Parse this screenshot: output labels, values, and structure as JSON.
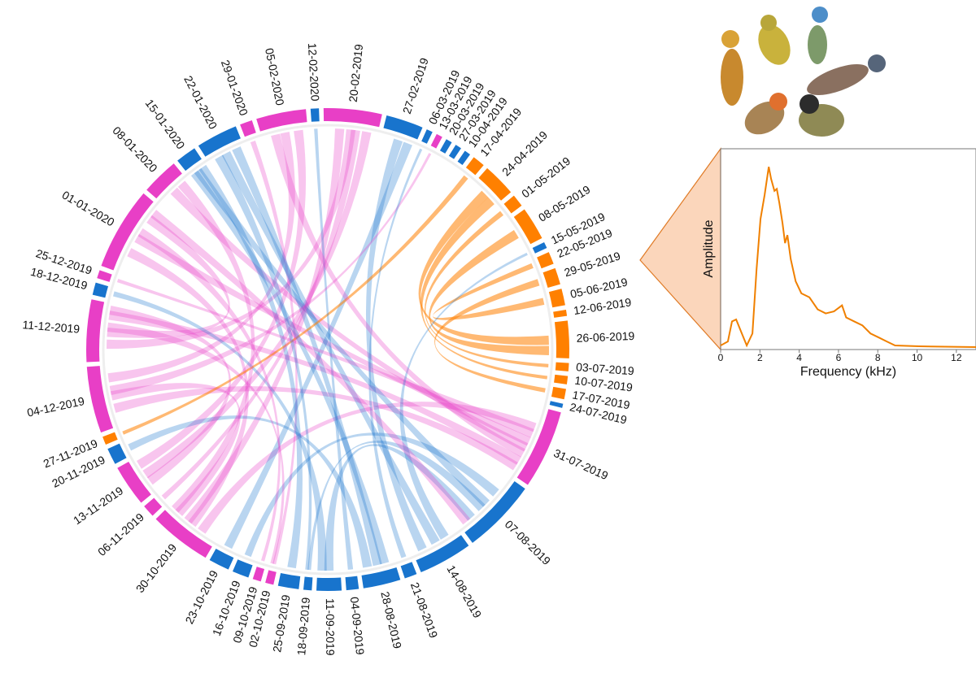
{
  "chart_data": [
    {
      "type": "chord",
      "segments": [
        {
          "label": "20-02-2019",
          "value": 14,
          "color": "#e83fc6"
        },
        {
          "label": "27-02-2019",
          "value": 9,
          "color": "#1874cd"
        },
        {
          "label": "06-03-2019",
          "value": 1.5,
          "color": "#1874cd"
        },
        {
          "label": "13-03-2019",
          "value": 1.5,
          "color": "#e83fc6"
        },
        {
          "label": "20-03-2019",
          "value": 1.5,
          "color": "#1874cd"
        },
        {
          "label": "27-03-2019",
          "value": 1.5,
          "color": "#1874cd"
        },
        {
          "label": "10-04-2019",
          "value": 1.5,
          "color": "#1874cd"
        },
        {
          "label": "17-04-2019",
          "value": 3,
          "color": "#ff8000"
        },
        {
          "label": "24-04-2019",
          "value": 8,
          "color": "#ff8000"
        },
        {
          "label": "01-05-2019",
          "value": 3,
          "color": "#ff8000"
        },
        {
          "label": "08-05-2019",
          "value": 8,
          "color": "#ff8000"
        },
        {
          "label": "15-05-2019",
          "value": 1.5,
          "color": "#1874cd"
        },
        {
          "label": "22-05-2019",
          "value": 3,
          "color": "#ff8000"
        },
        {
          "label": "29-05-2019",
          "value": 4,
          "color": "#ff8000"
        },
        {
          "label": "05-06-2019",
          "value": 4,
          "color": "#ff8000"
        },
        {
          "label": "12-06-2019",
          "value": 1.5,
          "color": "#ff8000"
        },
        {
          "label": "26-06-2019",
          "value": 9,
          "color": "#ff8000"
        },
        {
          "label": "03-07-2019",
          "value": 2,
          "color": "#ff8000"
        },
        {
          "label": "10-07-2019",
          "value": 2,
          "color": "#ff8000"
        },
        {
          "label": "17-07-2019",
          "value": 2.5,
          "color": "#ff8000"
        },
        {
          "label": "24-07-2019",
          "value": 1,
          "color": "#1874cd"
        },
        {
          "label": "31-07-2019",
          "value": 19,
          "color": "#e83fc6"
        },
        {
          "label": "07-08-2019",
          "value": 18,
          "color": "#1874cd"
        },
        {
          "label": "14-08-2019",
          "value": 13,
          "color": "#1874cd"
        },
        {
          "label": "21-08-2019",
          "value": 3,
          "color": "#1874cd"
        },
        {
          "label": "28-08-2019",
          "value": 9,
          "color": "#1874cd"
        },
        {
          "label": "04-09-2019",
          "value": 3,
          "color": "#1874cd"
        },
        {
          "label": "11-09-2019",
          "value": 6,
          "color": "#1874cd"
        },
        {
          "label": "18-09-2019",
          "value": 2,
          "color": "#1874cd"
        },
        {
          "label": "25-09-2019",
          "value": 5,
          "color": "#1874cd"
        },
        {
          "label": "02-10-2019",
          "value": 2,
          "color": "#e83fc6"
        },
        {
          "label": "09-10-2019",
          "value": 2,
          "color": "#e83fc6"
        },
        {
          "label": "16-10-2019",
          "value": 4,
          "color": "#1874cd"
        },
        {
          "label": "23-10-2019",
          "value": 5,
          "color": "#1874cd"
        },
        {
          "label": "30-10-2019",
          "value": 15,
          "color": "#e83fc6"
        },
        {
          "label": "06-11-2019",
          "value": 3,
          "color": "#e83fc6"
        },
        {
          "label": "13-11-2019",
          "value": 10,
          "color": "#e83fc6"
        },
        {
          "label": "20-11-2019",
          "value": 4,
          "color": "#1874cd"
        },
        {
          "label": "27-11-2019",
          "value": 2,
          "color": "#ff8000"
        },
        {
          "label": "04-12-2019",
          "value": 16,
          "color": "#e83fc6"
        },
        {
          "label": "11-12-2019",
          "value": 15,
          "color": "#e83fc6"
        },
        {
          "label": "18-12-2019",
          "value": 3,
          "color": "#1874cd"
        },
        {
          "label": "25-12-2019",
          "value": 2,
          "color": "#e83fc6"
        },
        {
          "label": "01-01-2020",
          "value": 20,
          "color": "#e83fc6"
        },
        {
          "label": "08-01-2020",
          "value": 9,
          "color": "#e83fc6"
        },
        {
          "label": "15-01-2020",
          "value": 5,
          "color": "#1874cd"
        },
        {
          "label": "22-01-2020",
          "value": 10,
          "color": "#1874cd"
        },
        {
          "label": "29-01-2020",
          "value": 3,
          "color": "#e83fc6"
        },
        {
          "label": "05-02-2020",
          "value": 12,
          "color": "#e83fc6"
        },
        {
          "label": "12-02-2020",
          "value": 2,
          "color": "#1874cd"
        }
      ],
      "links": [
        [
          43,
          21
        ],
        [
          43,
          40
        ],
        [
          43,
          34
        ],
        [
          40,
          21
        ],
        [
          40,
          0
        ],
        [
          39,
          34
        ],
        [
          39,
          48
        ],
        [
          36,
          0
        ],
        [
          34,
          21
        ],
        [
          48,
          36
        ],
        [
          44,
          21
        ],
        [
          0,
          34
        ],
        [
          21,
          39
        ],
        [
          47,
          30
        ],
        [
          22,
          45
        ],
        [
          22,
          27
        ],
        [
          23,
          46
        ],
        [
          23,
          1
        ],
        [
          25,
          46
        ],
        [
          32,
          22
        ],
        [
          33,
          1
        ],
        [
          29,
          45
        ],
        [
          27,
          41
        ],
        [
          37,
          25
        ],
        [
          16,
          8
        ],
        [
          16,
          10
        ],
        [
          19,
          13
        ],
        [
          17,
          9
        ],
        [
          14,
          12
        ],
        [
          18,
          8
        ],
        [
          38,
          7
        ],
        [
          26,
          49
        ],
        [
          28,
          22
        ],
        [
          31,
          43
        ],
        [
          30,
          40
        ],
        [
          35,
          0
        ],
        [
          42,
          21
        ],
        [
          3,
          39
        ],
        [
          11,
          23
        ],
        [
          2,
          24
        ],
        [
          43,
          22
        ],
        [
          40,
          36
        ],
        [
          44,
          34
        ],
        [
          46,
          28
        ],
        [
          45,
          25
        ],
        [
          21,
          48
        ]
      ]
    },
    {
      "type": "line",
      "xlabel": "Frequency (kHz)",
      "ylabel": "Amplitude",
      "x": [
        0,
        0.37,
        0.58,
        0.79,
        1.08,
        1.33,
        1.62,
        1.83,
        2.03,
        2.24,
        2.45,
        2.57,
        2.74,
        2.86,
        2.99,
        3.15,
        3.28,
        3.4,
        3.57,
        3.82,
        4.11,
        4.52,
        4.94,
        5.35,
        5.77,
        6.18,
        6.39,
        6.8,
        7.22,
        7.63,
        8.05,
        8.46,
        8.88,
        10.1,
        13
      ],
      "series": [
        {
          "color": "#f08000",
          "values": [
            0.02,
            0.04,
            0.14,
            0.15,
            0.08,
            0.02,
            0.08,
            0.4,
            0.65,
            0.77,
            0.91,
            0.85,
            0.79,
            0.8,
            0.73,
            0.63,
            0.53,
            0.57,
            0.45,
            0.34,
            0.28,
            0.26,
            0.2,
            0.18,
            0.19,
            0.22,
            0.16,
            0.14,
            0.12,
            0.08,
            0.06,
            0.04,
            0.02,
            0.016,
            0.012
          ]
        }
      ],
      "xlim": [
        0,
        13
      ],
      "ylim": [
        0,
        1
      ],
      "xticks": [
        0,
        2,
        4,
        6,
        8,
        10,
        12
      ]
    }
  ]
}
